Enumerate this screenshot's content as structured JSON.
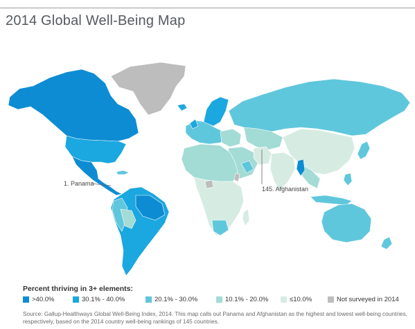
{
  "title": "2014 Global Well-Being Map",
  "colors": {
    "tier1": "#0e8cd3",
    "tier2": "#1ba7df",
    "tier3": "#5fc7dc",
    "tier4": "#a3dbd5",
    "tier5": "#d6ece3",
    "not_surveyed": "#bdbdbd",
    "border": "#ffffff"
  },
  "callouts": {
    "panama": "1. Panama",
    "afghanistan": "145. Afghanistan"
  },
  "legend": {
    "title": "Percent thriving in 3+ elements:",
    "items": [
      {
        "label": ">40.0%",
        "color": "#0e8cd3"
      },
      {
        "label": "30.1% - 40.0%",
        "color": "#1ba7df"
      },
      {
        "label": "20.1% - 30.0%",
        "color": "#5fc7dc"
      },
      {
        "label": "10.1% - 20.0%",
        "color": "#a3dbd5"
      },
      {
        "label": "≤10.0%",
        "color": "#d6ece3"
      },
      {
        "label": "Not surveyed in 2014",
        "color": "#bdbdbd"
      }
    ]
  },
  "source": "Source: Gallup-Healthways Global Well-Being Index, 2014. This map calls out Panama and Afghanistan as the highest and lowest well-being countries, respectively, based on the 2014 country well-being rankings of 145 countries."
}
